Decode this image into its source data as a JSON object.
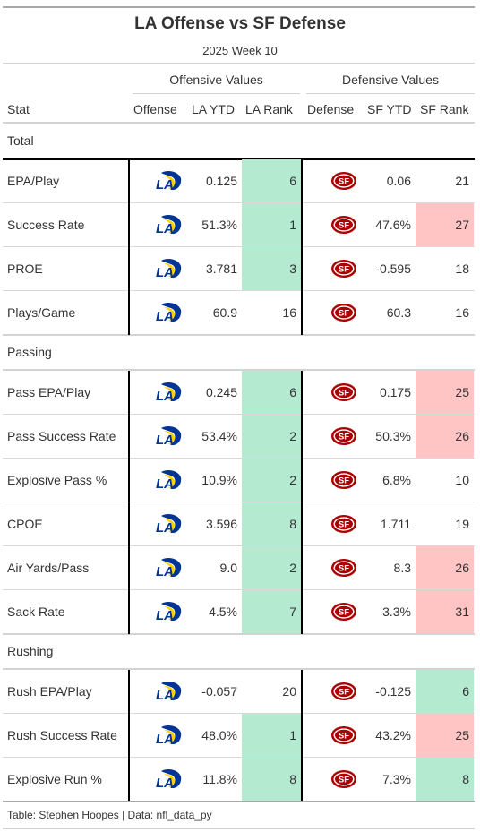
{
  "title": "LA Offense vs SF Defense",
  "subtitle": "2025 Week 10",
  "spanners": {
    "offense": "Offensive Values",
    "defense": "Defensive Values"
  },
  "columns": {
    "stat": "Stat",
    "offense": "Offense",
    "la_ytd": "LA YTD",
    "la_rank": "LA Rank",
    "defense": "Defense",
    "sf_ytd": "SF YTD",
    "sf_rank": "SF Rank"
  },
  "colors": {
    "good": "#b3ead0",
    "bad": "#ffc4c4",
    "rams_blue": "#003594",
    "rams_gold": "#ffd100",
    "niners_red": "#aa0000",
    "niners_gold": "#b3995d"
  },
  "offense_icon": "rams-logo-icon",
  "defense_icon": "49ers-logo-icon",
  "groups": [
    {
      "label": "Total",
      "rows": [
        {
          "stat": "EPA/Play",
          "la_ytd": "0.125",
          "la_rank": "6",
          "la_shade": "good",
          "sf_ytd": "0.06",
          "sf_rank": "21",
          "sf_shade": ""
        },
        {
          "stat": "Success Rate",
          "la_ytd": "51.3%",
          "la_rank": "1",
          "la_shade": "good",
          "sf_ytd": "47.6%",
          "sf_rank": "27",
          "sf_shade": "bad"
        },
        {
          "stat": "PROE",
          "la_ytd": "3.781",
          "la_rank": "3",
          "la_shade": "good",
          "sf_ytd": "-0.595",
          "sf_rank": "18",
          "sf_shade": ""
        },
        {
          "stat": "Plays/Game",
          "la_ytd": "60.9",
          "la_rank": "16",
          "la_shade": "",
          "sf_ytd": "60.3",
          "sf_rank": "16",
          "sf_shade": ""
        }
      ]
    },
    {
      "label": "Passing",
      "rows": [
        {
          "stat": "Pass EPA/Play",
          "la_ytd": "0.245",
          "la_rank": "6",
          "la_shade": "good",
          "sf_ytd": "0.175",
          "sf_rank": "25",
          "sf_shade": "bad"
        },
        {
          "stat": "Pass Success Rate",
          "la_ytd": "53.4%",
          "la_rank": "2",
          "la_shade": "good",
          "sf_ytd": "50.3%",
          "sf_rank": "26",
          "sf_shade": "bad"
        },
        {
          "stat": "Explosive Pass %",
          "la_ytd": "10.9%",
          "la_rank": "2",
          "la_shade": "good",
          "sf_ytd": "6.8%",
          "sf_rank": "10",
          "sf_shade": ""
        },
        {
          "stat": "CPOE",
          "la_ytd": "3.596",
          "la_rank": "8",
          "la_shade": "good",
          "sf_ytd": "1.711",
          "sf_rank": "19",
          "sf_shade": ""
        },
        {
          "stat": "Air Yards/Pass",
          "la_ytd": "9.0",
          "la_rank": "2",
          "la_shade": "good",
          "sf_ytd": "8.3",
          "sf_rank": "26",
          "sf_shade": "bad"
        },
        {
          "stat": "Sack Rate",
          "la_ytd": "4.5%",
          "la_rank": "7",
          "la_shade": "good",
          "sf_ytd": "3.3%",
          "sf_rank": "31",
          "sf_shade": "bad"
        }
      ]
    },
    {
      "label": "Rushing",
      "rows": [
        {
          "stat": "Rush EPA/Play",
          "la_ytd": "-0.057",
          "la_rank": "20",
          "la_shade": "",
          "sf_ytd": "-0.125",
          "sf_rank": "6",
          "sf_shade": "good"
        },
        {
          "stat": "Rush Success Rate",
          "la_ytd": "48.0%",
          "la_rank": "1",
          "la_shade": "good",
          "sf_ytd": "43.2%",
          "sf_rank": "25",
          "sf_shade": "bad"
        },
        {
          "stat": "Explosive Run %",
          "la_ytd": "11.8%",
          "la_rank": "8",
          "la_shade": "good",
          "sf_ytd": "7.3%",
          "sf_rank": "8",
          "sf_shade": "good"
        }
      ]
    }
  ],
  "footer": "Table: Stephen Hoopes | Data: nfl_data_py"
}
